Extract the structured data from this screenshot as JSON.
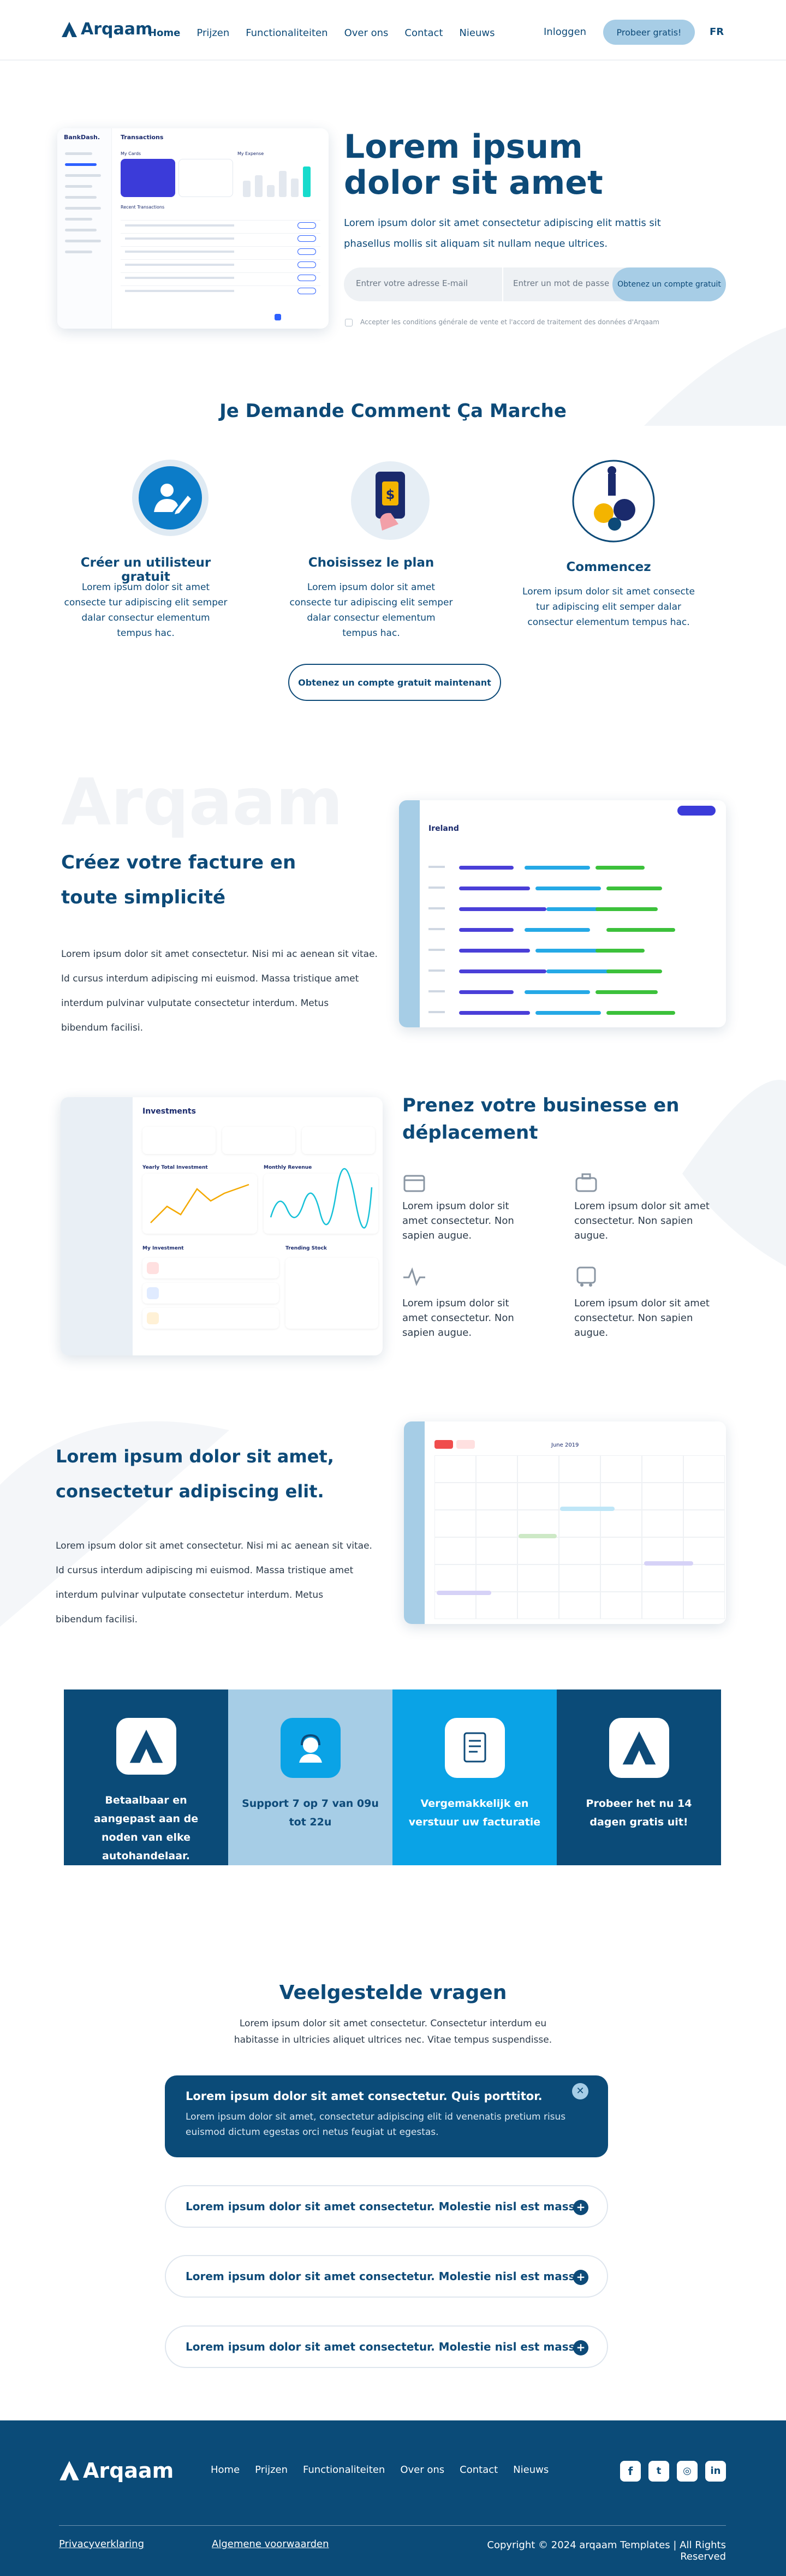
{
  "nav": {
    "logo": "Arqaam",
    "links": [
      "Home",
      "Prijzen",
      "Functionaliteiten",
      "Over ons",
      "Contact",
      "Nieuws"
    ],
    "login": "Inloggen",
    "cta": "Probeer gratis!",
    "lang": "FR"
  },
  "hero": {
    "title": "Lorem ipsum dolor sit amet",
    "text": "Lorem ipsum dolor sit amet consectetur adipiscing elit mattis sit phasellus mollis sit aliquam sit nullam neque ultrices.",
    "email_placeholder": "Entrer votre adresse E-mail",
    "password_placeholder": "Entrer un mot de passe",
    "button": "Obtenez un compte gratuit",
    "terms": "Accepter les conditions générale de vente et l'accord de traitement des données d'Arqaam",
    "mockup": {
      "brand": "BankDash.",
      "title": "Transactions",
      "cards": "My Cards",
      "expense": "My Expense",
      "recent": "Recent Transactions"
    }
  },
  "how": {
    "title": "Je Demande Comment Ça Marche",
    "steps": [
      {
        "title": "Créer un utilisteur gratuit",
        "text": "Lorem ipsum dolor sit amet consecte tur adipiscing elit semper dalar consectur elementum tempus hac."
      },
      {
        "title": "Choisissez le plan",
        "text": "Lorem ipsum dolor sit amet consecte tur adipiscing elit semper dalar consectur elementum tempus hac."
      },
      {
        "title": "Commencez",
        "text": "Lorem ipsum dolor sit amet consecte tur adipiscing elit semper dalar consectur elementum tempus hac."
      }
    ],
    "button": "Obtenez un compte gratuit maintenant"
  },
  "feature1": {
    "watermark": "Arqaam",
    "title": "Créez votre facture en toute simplicité",
    "text": "Lorem ipsum dolor sit amet consectetur. Nisi mi ac aenean sit vitae. Id cursus interdum adipiscing mi euismod. Massa tristique amet interdum pulvinar vulputate consectetur interdum. Metus bibendum facilisi.",
    "mockup": {
      "title": "Ireland"
    }
  },
  "feature2": {
    "title": "Prenez votre businesse en déplacement",
    "items": [
      "Lorem ipsum dolor sit amet consectetur. Non sapien augue.",
      "Lorem ipsum dolor sit amet consectetur. Non sapien augue.",
      "Lorem ipsum dolor sit amet consectetur. Non sapien augue.",
      "Lorem ipsum dolor sit amet consectetur. Non sapien augue."
    ],
    "mockup": {
      "title": "Investments",
      "yearly": "Yearly Total Investment",
      "monthly": "Monthly Revenue",
      "mine": "My Investment",
      "trending": "Trending Stock"
    }
  },
  "feature3": {
    "title": "Lorem ipsum dolor sit amet, consectetur adipiscing elit.",
    "text": "Lorem ipsum dolor sit amet consectetur. Nisi mi ac aenean sit vitae. Id cursus interdum adipiscing mi euismod. Massa tristique amet interdum pulvinar vulputate consectetur interdum. Metus bibendum facilisi.",
    "mockup": {
      "month": "June 2019"
    }
  },
  "tiles": [
    "Betaalbaar en aangepast aan de noden van elke autohandelaar.",
    "Support 7 op 7 van 09u tot 22u",
    "Vergemakkelijk en verstuur uw facturatie",
    "Probeer het nu 14 dagen gratis uit!"
  ],
  "faq": {
    "title": "Veelgestelde vragen",
    "subtitle": "Lorem ipsum dolor sit amet consectetur. Consectetur interdum eu habitasse in ultricies aliquet ultrices nec. Vitae tempus suspendisse.",
    "items": [
      {
        "question": "Lorem ipsum dolor sit amet consectetur. Quis porttitor.",
        "answer": "Lorem ipsum dolor sit amet, consectetur adipiscing elit id venenatis pretium risus euismod dictum egestas orci netus feugiat ut egestas."
      },
      {
        "question": "Lorem ipsum dolor sit amet consectetur. Molestie nisl est massa."
      },
      {
        "question": "Lorem ipsum dolor sit amet consectetur. Molestie nisl est massa."
      },
      {
        "question": "Lorem ipsum dolor sit amet consectetur. Molestie nisl est massa."
      }
    ]
  },
  "footer": {
    "logo": "Arqaam",
    "links": [
      "Home",
      "Prijzen",
      "Functionaliteiten",
      "Over ons",
      "Contact",
      "Nieuws"
    ],
    "privacy": "Privacyverklaring",
    "terms": "Algemene voorwaarden",
    "copyright": "Copyright © 2024 arqaam Templates | All Rights Reserved"
  }
}
